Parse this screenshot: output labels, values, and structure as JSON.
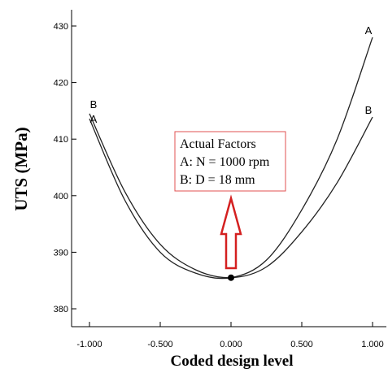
{
  "chart_data": {
    "type": "line",
    "title": "",
    "xlabel": "Coded design level",
    "ylabel": "UTS (MPa)",
    "xlim": [
      -1.0,
      1.0
    ],
    "ylim": [
      380,
      430
    ],
    "xticks": [
      -1.0,
      -0.5,
      0.0,
      0.5,
      1.0
    ],
    "xtick_labels": [
      "-1.000",
      "-0.500",
      "0.000",
      "0.500",
      "1.000"
    ],
    "yticks": [
      380,
      390,
      400,
      410,
      420,
      430
    ],
    "ytick_labels": [
      "380",
      "390",
      "400",
      "410",
      "420",
      "430"
    ],
    "grid": false,
    "series": [
      {
        "name": "A",
        "x": [
          -1.0,
          -0.75,
          -0.5,
          -0.25,
          0.0,
          0.25,
          0.5,
          0.75,
          1.0
        ],
        "y": [
          413.6,
          399.2,
          390.0,
          386.3,
          385.5,
          388.6,
          397.5,
          410.0,
          428.0
        ]
      },
      {
        "name": "B",
        "x": [
          -1.0,
          -0.75,
          -0.5,
          -0.25,
          0.0,
          0.25,
          0.5,
          0.75,
          1.0
        ],
        "y": [
          414.5,
          400.7,
          391.4,
          386.9,
          385.5,
          387.4,
          393.6,
          402.3,
          413.9
        ]
      }
    ],
    "center_point": {
      "x": 0.0,
      "y": 385.5
    },
    "annotation": {
      "lines": [
        "Actual Factors",
        "A: N = 1000 rpm",
        "B: D = 18 mm"
      ],
      "box_color": "#e05050",
      "arrow_color": "#d42020"
    },
    "line_color": "#222222"
  }
}
